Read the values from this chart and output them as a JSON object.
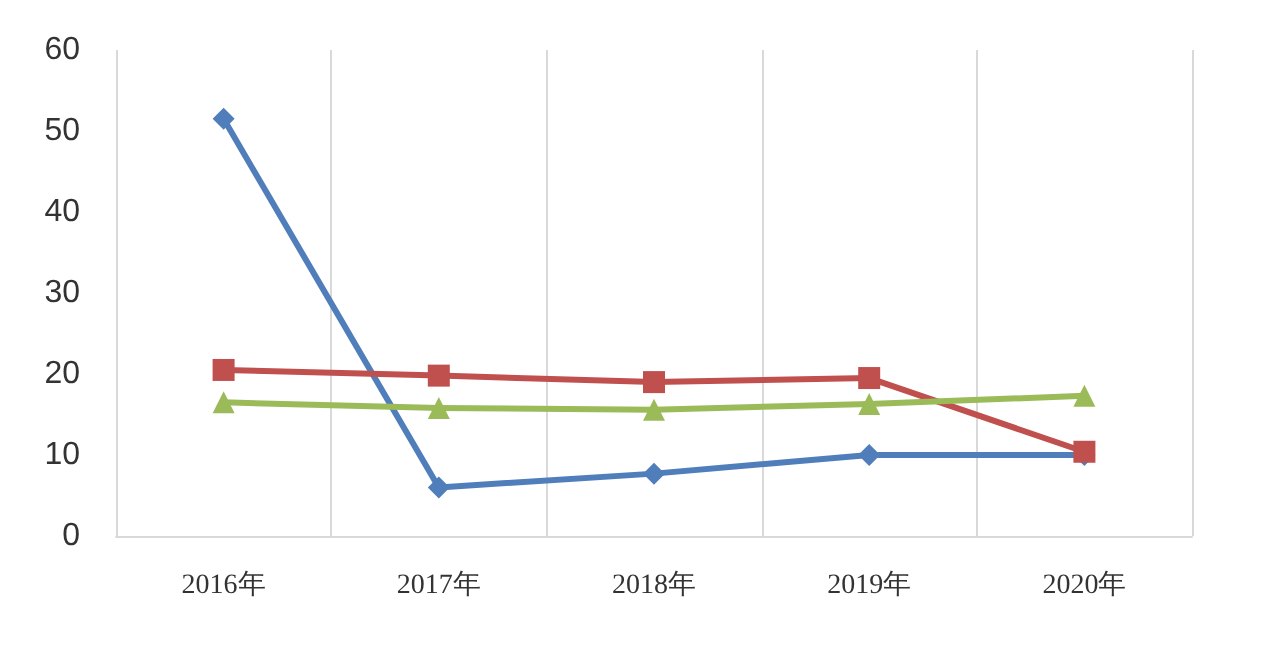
{
  "chart_data": {
    "type": "line",
    "categories": [
      "2016年",
      "2017年",
      "2018年",
      "2019年",
      "2020年"
    ],
    "series": [
      {
        "color": "#4f7ebb",
        "marker": "diamond",
        "values": [
          51.5,
          6,
          7.7,
          10,
          10
        ]
      },
      {
        "color": "#c0504d",
        "marker": "square",
        "values": [
          20.5,
          19.8,
          19,
          19.5,
          10.4
        ]
      },
      {
        "color": "#9bbb59",
        "marker": "triangle",
        "values": [
          16.5,
          15.8,
          15.6,
          16.3,
          17.3
        ]
      }
    ],
    "ylim": [
      0,
      60
    ],
    "yticks": [
      0,
      10,
      20,
      30,
      40,
      50,
      60
    ],
    "grid": "x",
    "line_style": "solid"
  }
}
